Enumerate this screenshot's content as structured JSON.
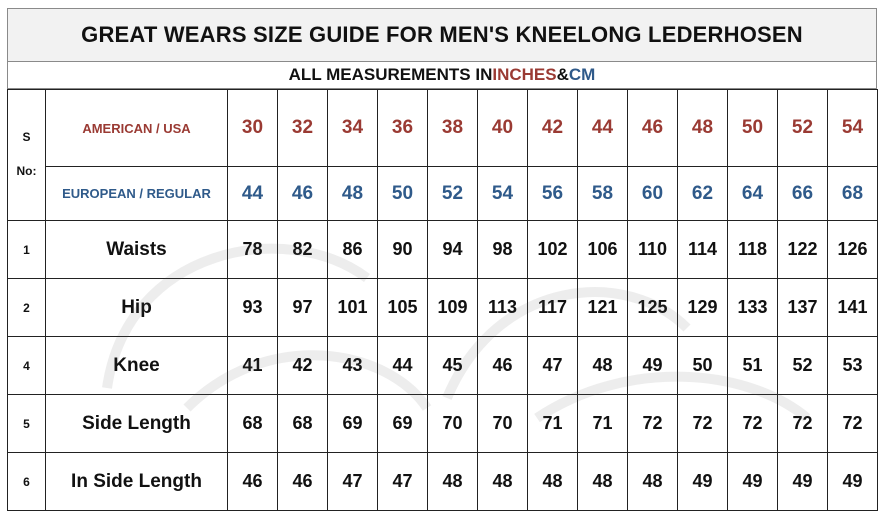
{
  "title": "GREAT WEARS SIZE GUIDE FOR MEN'S KNEELONG LEDERHOSEN",
  "subtitle": {
    "prefix": "ALL MEASUREMENTS IN ",
    "unit1": "INCHES",
    "joiner": " & ",
    "unit2": "CM"
  },
  "sno_header": {
    "line1": "S",
    "line2": "No:"
  },
  "size_labels": {
    "us": "AMERICAN / USA",
    "eu": "EUROPEAN / REGULAR"
  },
  "us_sizes": [
    "30",
    "32",
    "34",
    "36",
    "38",
    "40",
    "42",
    "44",
    "46",
    "48",
    "50",
    "52",
    "54"
  ],
  "eu_sizes": [
    "44",
    "46",
    "48",
    "50",
    "52",
    "54",
    "56",
    "58",
    "60",
    "62",
    "64",
    "66",
    "68"
  ],
  "rows": [
    {
      "sno": "1",
      "label": "Waists",
      "values": [
        "78",
        "82",
        "86",
        "90",
        "94",
        "98",
        "102",
        "106",
        "110",
        "114",
        "118",
        "122",
        "126"
      ]
    },
    {
      "sno": "2",
      "label": "Hip",
      "values": [
        "93",
        "97",
        "101",
        "105",
        "109",
        "113",
        "117",
        "121",
        "125",
        "129",
        "133",
        "137",
        "141"
      ]
    },
    {
      "sno": "4",
      "label": "Knee",
      "values": [
        "41",
        "42",
        "43",
        "44",
        "45",
        "46",
        "47",
        "48",
        "49",
        "50",
        "51",
        "52",
        "53"
      ]
    },
    {
      "sno": "5",
      "label": "Side Length",
      "values": [
        "68",
        "68",
        "69",
        "69",
        "70",
        "70",
        "71",
        "71",
        "72",
        "72",
        "72",
        "72",
        "72"
      ]
    },
    {
      "sno": "6",
      "label": "In Side Length",
      "values": [
        "46",
        "46",
        "47",
        "47",
        "48",
        "48",
        "48",
        "48",
        "48",
        "49",
        "49",
        "49",
        "49"
      ]
    }
  ],
  "colors": {
    "us": "#9a3a33",
    "eu": "#2f5a8a",
    "border": "#222222",
    "title_bg": "#f2f2f2"
  }
}
